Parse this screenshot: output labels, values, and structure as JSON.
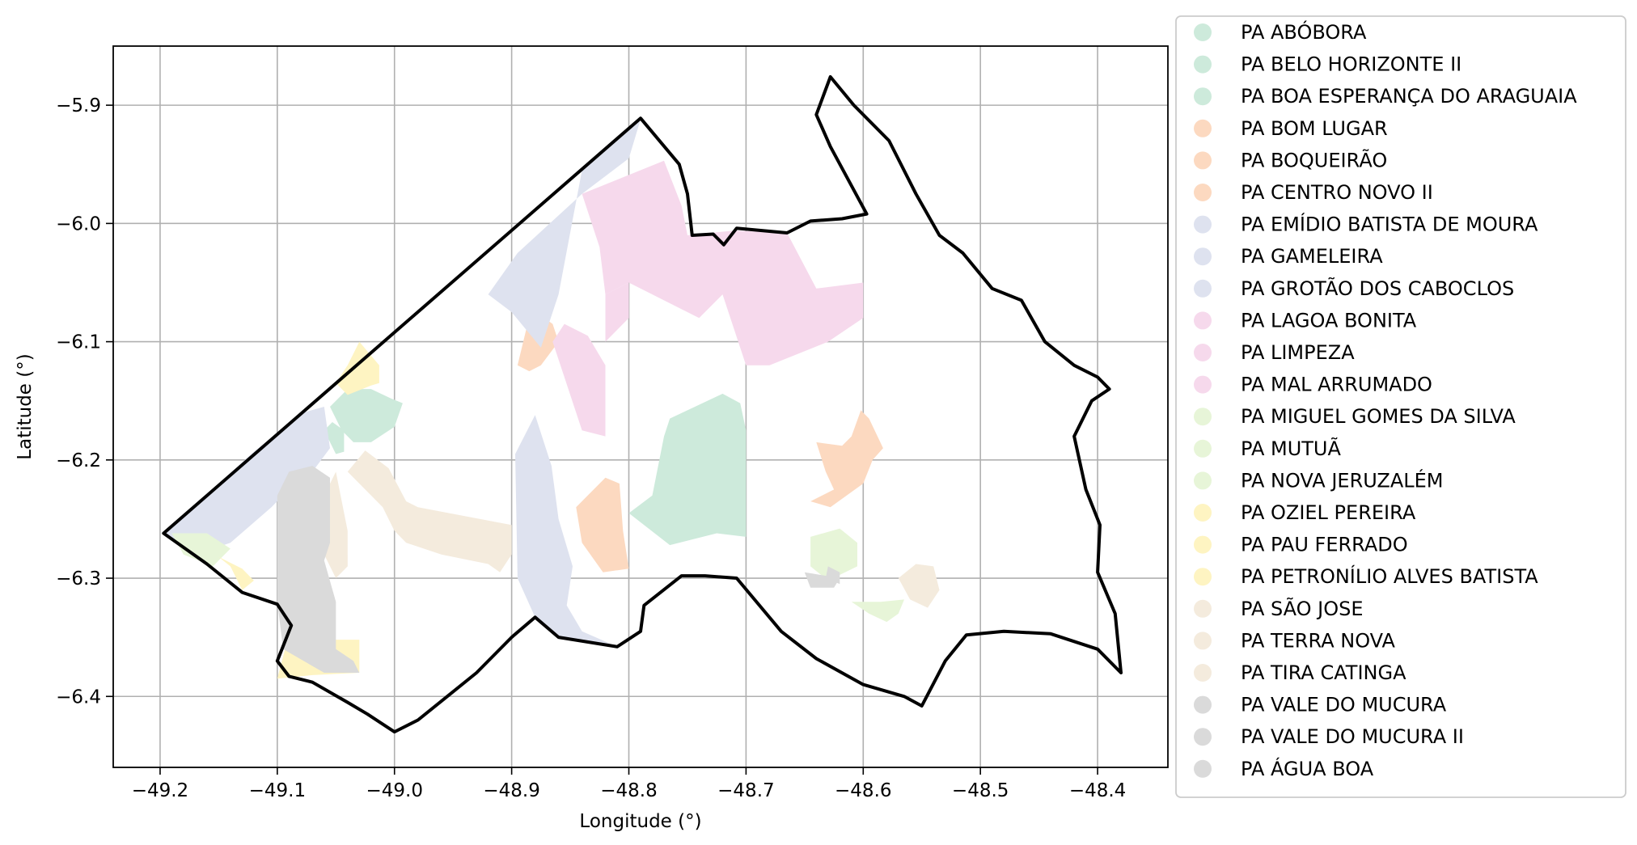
{
  "chart_data": {
    "type": "map",
    "xlabel": "Longitude (°)",
    "ylabel": "Latitude (°)",
    "xlim": [
      -49.24,
      -48.34
    ],
    "ylim": [
      -6.46,
      -5.85
    ],
    "xticks": [
      -49.2,
      -49.1,
      -49.0,
      -48.9,
      -48.8,
      -48.7,
      -48.6,
      -48.5,
      -48.4
    ],
    "yticks": [
      -5.9,
      -6.0,
      -6.1,
      -6.2,
      -6.3,
      -6.4
    ],
    "xtick_labels": [
      "−49.2",
      "−49.1",
      "−49.0",
      "−48.9",
      "−48.8",
      "−48.7",
      "−48.6",
      "−48.5",
      "−48.4"
    ],
    "ytick_labels": [
      "−5.9",
      "−6.0",
      "−6.1",
      "−6.2",
      "−6.3",
      "−6.4"
    ],
    "grid": true,
    "legend_position": "right-outside",
    "boundary_color": "#000000",
    "boundary": [
      [
        -49.197,
        -6.262
      ],
      [
        -48.79,
        -5.911
      ],
      [
        -48.757,
        -5.95
      ],
      [
        -48.75,
        -5.975
      ],
      [
        -48.746,
        -6.01
      ],
      [
        -48.728,
        -6.009
      ],
      [
        -48.719,
        -6.018
      ],
      [
        -48.708,
        -6.004
      ],
      [
        -48.665,
        -6.008
      ],
      [
        -48.645,
        -5.998
      ],
      [
        -48.618,
        -5.996
      ],
      [
        -48.597,
        -5.992
      ],
      [
        -48.628,
        -5.935
      ],
      [
        -48.64,
        -5.908
      ],
      [
        -48.628,
        -5.876
      ],
      [
        -48.608,
        -5.9
      ],
      [
        -48.578,
        -5.93
      ],
      [
        -48.555,
        -5.975
      ],
      [
        -48.535,
        -6.01
      ],
      [
        -48.515,
        -6.025
      ],
      [
        -48.49,
        -6.055
      ],
      [
        -48.465,
        -6.065
      ],
      [
        -48.445,
        -6.1
      ],
      [
        -48.42,
        -6.12
      ],
      [
        -48.4,
        -6.13
      ],
      [
        -48.39,
        -6.14
      ],
      [
        -48.405,
        -6.15
      ],
      [
        -48.42,
        -6.18
      ],
      [
        -48.41,
        -6.225
      ],
      [
        -48.398,
        -6.255
      ],
      [
        -48.4,
        -6.295
      ],
      [
        -48.385,
        -6.33
      ],
      [
        -48.38,
        -6.38
      ],
      [
        -48.4,
        -6.36
      ],
      [
        -48.44,
        -6.347
      ],
      [
        -48.48,
        -6.345
      ],
      [
        -48.512,
        -6.348
      ],
      [
        -48.53,
        -6.37
      ],
      [
        -48.55,
        -6.408
      ],
      [
        -48.565,
        -6.4
      ],
      [
        -48.6,
        -6.39
      ],
      [
        -48.64,
        -6.368
      ],
      [
        -48.67,
        -6.345
      ],
      [
        -48.708,
        -6.3
      ],
      [
        -48.735,
        -6.298
      ],
      [
        -48.755,
        -6.298
      ],
      [
        -48.787,
        -6.323
      ],
      [
        -48.79,
        -6.345
      ],
      [
        -48.81,
        -6.358
      ],
      [
        -48.86,
        -6.35
      ],
      [
        -48.88,
        -6.333
      ],
      [
        -48.9,
        -6.35
      ],
      [
        -48.93,
        -6.38
      ],
      [
        -48.955,
        -6.4
      ],
      [
        -48.98,
        -6.42
      ],
      [
        -49.0,
        -6.43
      ],
      [
        -49.023,
        -6.415
      ],
      [
        -49.04,
        -6.405
      ],
      [
        -49.07,
        -6.388
      ],
      [
        -49.09,
        -6.383
      ],
      [
        -49.1,
        -6.37
      ],
      [
        -49.088,
        -6.34
      ],
      [
        -49.1,
        -6.322
      ],
      [
        -49.13,
        -6.312
      ],
      [
        -49.16,
        -6.288
      ],
      [
        -49.197,
        -6.262
      ]
    ],
    "series": [
      {
        "name": "PA ABÓBORA",
        "color": "#cdeadb",
        "polygon": [
          [
            -48.765,
            -6.165
          ],
          [
            -48.72,
            -6.144
          ],
          [
            -48.705,
            -6.152
          ],
          [
            -48.7,
            -6.175
          ],
          [
            -48.7,
            -6.265
          ],
          [
            -48.725,
            -6.262
          ],
          [
            -48.765,
            -6.272
          ],
          [
            -48.8,
            -6.245
          ],
          [
            -48.78,
            -6.23
          ],
          [
            -48.77,
            -6.18
          ]
        ]
      },
      {
        "name": "PA BELO HORIZONTE II",
        "color": "#cdeadb",
        "polygon": [
          [
            -49.055,
            -6.155
          ],
          [
            -49.045,
            -6.175
          ],
          [
            -49.035,
            -6.185
          ],
          [
            -49.02,
            -6.185
          ],
          [
            -49.0,
            -6.172
          ],
          [
            -48.993,
            -6.152
          ],
          [
            -49.003,
            -6.148
          ],
          [
            -49.02,
            -6.14
          ],
          [
            -49.04,
            -6.14
          ]
        ]
      },
      {
        "name": "PA BOA ESPERANÇA DO ARAGUAIA",
        "color": "#cdeadb",
        "polygon": [
          [
            -49.06,
            -6.175
          ],
          [
            -49.053,
            -6.168
          ],
          [
            -49.043,
            -6.175
          ],
          [
            -49.043,
            -6.193
          ],
          [
            -49.05,
            -6.195
          ]
        ]
      },
      {
        "name": "PA BOM LUGAR",
        "color": "#fcd9c0",
        "polygon": [
          [
            -48.895,
            -6.12
          ],
          [
            -48.884,
            -6.075
          ],
          [
            -48.875,
            -6.078
          ],
          [
            -48.865,
            -6.085
          ],
          [
            -48.86,
            -6.1
          ],
          [
            -48.875,
            -6.12
          ],
          [
            -48.885,
            -6.125
          ]
        ]
      },
      {
        "name": "PA BOQUEIRÃO",
        "color": "#fcd9c0",
        "polygon": [
          [
            -48.82,
            -6.215
          ],
          [
            -48.808,
            -6.22
          ],
          [
            -48.805,
            -6.26
          ],
          [
            -48.8,
            -6.292
          ],
          [
            -48.822,
            -6.295
          ],
          [
            -48.84,
            -6.27
          ],
          [
            -48.845,
            -6.24
          ]
        ]
      },
      {
        "name": "PA CENTRO NOVO II",
        "color": "#fcd9c0",
        "polygon": [
          [
            -48.64,
            -6.185
          ],
          [
            -48.632,
            -6.21
          ],
          [
            -48.625,
            -6.225
          ],
          [
            -48.645,
            -6.235
          ],
          [
            -48.628,
            -6.24
          ],
          [
            -48.6,
            -6.22
          ],
          [
            -48.592,
            -6.2
          ],
          [
            -48.583,
            -6.19
          ],
          [
            -48.595,
            -6.165
          ],
          [
            -48.602,
            -6.158
          ],
          [
            -48.61,
            -6.18
          ],
          [
            -48.618,
            -6.188
          ]
        ]
      },
      {
        "name": "PA EMÍDIO BATISTA DE MOURA",
        "color": "#dee2ef",
        "polygon": [
          [
            -48.92,
            -6.06
          ],
          [
            -48.895,
            -6.025
          ],
          [
            -48.84,
            -5.975
          ],
          [
            -48.82,
            -5.96
          ],
          [
            -48.8,
            -5.945
          ],
          [
            -48.79,
            -5.912
          ],
          [
            -48.84,
            -5.955
          ],
          [
            -48.86,
            -6.06
          ],
          [
            -48.875,
            -6.105
          ],
          [
            -48.9,
            -6.075
          ]
        ]
      },
      {
        "name": "PA GAMELEIRA",
        "color": "#dee2ef",
        "polygon": [
          [
            -48.897,
            -6.195
          ],
          [
            -48.88,
            -6.162
          ],
          [
            -48.866,
            -6.205
          ],
          [
            -48.86,
            -6.25
          ],
          [
            -48.848,
            -6.29
          ],
          [
            -48.853,
            -6.323
          ],
          [
            -48.84,
            -6.345
          ],
          [
            -48.81,
            -6.358
          ],
          [
            -48.86,
            -6.35
          ],
          [
            -48.88,
            -6.333
          ],
          [
            -48.895,
            -6.3
          ]
        ]
      },
      {
        "name": "PA GROTÃO DOS CABOCLOS",
        "color": "#dee2ef",
        "polygon": [
          [
            -49.197,
            -6.262
          ],
          [
            -49.12,
            -6.193
          ],
          [
            -49.078,
            -6.16
          ],
          [
            -49.06,
            -6.155
          ],
          [
            -49.055,
            -6.19
          ],
          [
            -49.07,
            -6.21
          ],
          [
            -49.09,
            -6.225
          ],
          [
            -49.105,
            -6.24
          ],
          [
            -49.14,
            -6.27
          ],
          [
            -49.17,
            -6.28
          ]
        ]
      },
      {
        "name": "PA LAGOA BONITA",
        "color": "#f6d9ec",
        "polygon": [
          [
            -48.84,
            -5.975
          ],
          [
            -48.77,
            -5.947
          ],
          [
            -48.755,
            -5.985
          ],
          [
            -48.75,
            -6.01
          ],
          [
            -48.71,
            -6.006
          ],
          [
            -48.665,
            -6.008
          ],
          [
            -48.64,
            -6.055
          ],
          [
            -48.6,
            -6.05
          ],
          [
            -48.6,
            -6.08
          ],
          [
            -48.63,
            -6.1
          ],
          [
            -48.68,
            -6.12
          ],
          [
            -48.7,
            -6.12
          ],
          [
            -48.72,
            -6.06
          ],
          [
            -48.74,
            -6.08
          ],
          [
            -48.8,
            -6.05
          ],
          [
            -48.82,
            -6.06
          ],
          [
            -48.825,
            -6.02
          ]
        ]
      },
      {
        "name": "PA LIMPEZA",
        "color": "#f6d9ec",
        "polygon": [
          [
            -48.865,
            -6.1
          ],
          [
            -48.84,
            -6.175
          ],
          [
            -48.82,
            -6.18
          ],
          [
            -48.82,
            -6.12
          ],
          [
            -48.835,
            -6.095
          ],
          [
            -48.855,
            -6.085
          ]
        ]
      },
      {
        "name": "PA MAL ARRUMADO",
        "color": "#f6d9ec",
        "polygon": [
          [
            -48.8,
            -6.05
          ],
          [
            -48.82,
            -6.06
          ],
          [
            -48.82,
            -6.1
          ],
          [
            -48.8,
            -6.08
          ]
        ]
      },
      {
        "name": "PA MIGUEL GOMES DA SILVA",
        "color": "#e7f5d8",
        "polygon": [
          [
            -48.645,
            -6.265
          ],
          [
            -48.62,
            -6.258
          ],
          [
            -48.605,
            -6.27
          ],
          [
            -48.605,
            -6.29
          ],
          [
            -48.63,
            -6.302
          ],
          [
            -48.645,
            -6.29
          ]
        ]
      },
      {
        "name": "PA MUTUÃ",
        "color": "#e7f5d8",
        "polygon": [
          [
            -48.61,
            -6.32
          ],
          [
            -48.585,
            -6.32
          ],
          [
            -48.565,
            -6.318
          ],
          [
            -48.57,
            -6.33
          ],
          [
            -48.58,
            -6.337
          ],
          [
            -48.595,
            -6.33
          ]
        ]
      },
      {
        "name": "PA NOVA JERUZALÉM",
        "color": "#e7f5d8",
        "polygon": [
          [
            -49.19,
            -6.262
          ],
          [
            -49.16,
            -6.262
          ],
          [
            -49.14,
            -6.275
          ],
          [
            -49.155,
            -6.29
          ],
          [
            -49.18,
            -6.28
          ]
        ]
      },
      {
        "name": "PA OZIEL PEREIRA",
        "color": "#fef4c2",
        "polygon": [
          [
            -49.03,
            -6.1
          ],
          [
            -49.04,
            -6.12
          ],
          [
            -49.05,
            -6.135
          ],
          [
            -49.04,
            -6.145
          ],
          [
            -49.02,
            -6.137
          ],
          [
            -49.013,
            -6.135
          ],
          [
            -49.013,
            -6.12
          ]
        ]
      },
      {
        "name": "PA PAU FERRADO",
        "color": "#fef4c2",
        "polygon": [
          [
            -49.1,
            -6.318
          ],
          [
            -49.075,
            -6.338
          ],
          [
            -49.06,
            -6.352
          ],
          [
            -49.03,
            -6.352
          ],
          [
            -49.03,
            -6.38
          ],
          [
            -49.07,
            -6.382
          ],
          [
            -49.1,
            -6.385
          ],
          [
            -49.088,
            -6.34
          ]
        ]
      },
      {
        "name": "PA PETRONÍLIO ALVES BATISTA",
        "color": "#fef4c2",
        "polygon": [
          [
            -49.15,
            -6.282
          ],
          [
            -49.13,
            -6.292
          ],
          [
            -49.12,
            -6.302
          ],
          [
            -49.13,
            -6.31
          ],
          [
            -49.14,
            -6.29
          ]
        ]
      },
      {
        "name": "PA SÃO JOSE",
        "color": "#f4ebdd",
        "polygon": [
          [
            -49.04,
            -6.21
          ],
          [
            -49.025,
            -6.192
          ],
          [
            -49.005,
            -6.207
          ],
          [
            -48.99,
            -6.235
          ],
          [
            -48.98,
            -6.24
          ],
          [
            -48.9,
            -6.255
          ],
          [
            -48.9,
            -6.28
          ],
          [
            -48.91,
            -6.295
          ],
          [
            -48.92,
            -6.288
          ],
          [
            -48.96,
            -6.28
          ],
          [
            -48.99,
            -6.27
          ],
          [
            -49.0,
            -6.26
          ],
          [
            -49.01,
            -6.24
          ]
        ]
      },
      {
        "name": "PA TERRA NOVA",
        "color": "#f4ebdd",
        "polygon": [
          [
            -49.05,
            -6.21
          ],
          [
            -49.04,
            -6.26
          ],
          [
            -49.04,
            -6.29
          ],
          [
            -49.05,
            -6.3
          ],
          [
            -49.06,
            -6.28
          ],
          [
            -49.06,
            -6.23
          ]
        ]
      },
      {
        "name": "PA TIRA CATINGA",
        "color": "#f4ebdd",
        "polygon": [
          [
            -48.555,
            -6.288
          ],
          [
            -48.54,
            -6.29
          ],
          [
            -48.535,
            -6.31
          ],
          [
            -48.545,
            -6.325
          ],
          [
            -48.56,
            -6.318
          ],
          [
            -48.57,
            -6.3
          ]
        ]
      },
      {
        "name": "PA VALE DO MUCURA",
        "color": "#dadada",
        "polygon": [
          [
            -49.09,
            -6.21
          ],
          [
            -49.07,
            -6.205
          ],
          [
            -49.055,
            -6.215
          ],
          [
            -49.055,
            -6.27
          ],
          [
            -49.06,
            -6.285
          ],
          [
            -49.05,
            -6.32
          ],
          [
            -49.05,
            -6.36
          ],
          [
            -49.035,
            -6.37
          ],
          [
            -49.03,
            -6.38
          ],
          [
            -49.06,
            -6.38
          ],
          [
            -49.095,
            -6.36
          ],
          [
            -49.1,
            -6.32
          ],
          [
            -49.1,
            -6.27
          ],
          [
            -49.1,
            -6.23
          ]
        ]
      },
      {
        "name": "PA VALE DO MUCURA II",
        "color": "#dadada",
        "polygon": [
          [
            -48.65,
            -6.295
          ],
          [
            -48.645,
            -6.308
          ],
          [
            -48.625,
            -6.308
          ],
          [
            -48.62,
            -6.3
          ]
        ]
      },
      {
        "name": "PA ÁGUA BOA",
        "color": "#dadada",
        "polygon": [
          [
            -48.632,
            -6.3
          ],
          [
            -48.63,
            -6.29
          ],
          [
            -48.62,
            -6.295
          ],
          [
            -48.62,
            -6.305
          ]
        ]
      }
    ]
  }
}
